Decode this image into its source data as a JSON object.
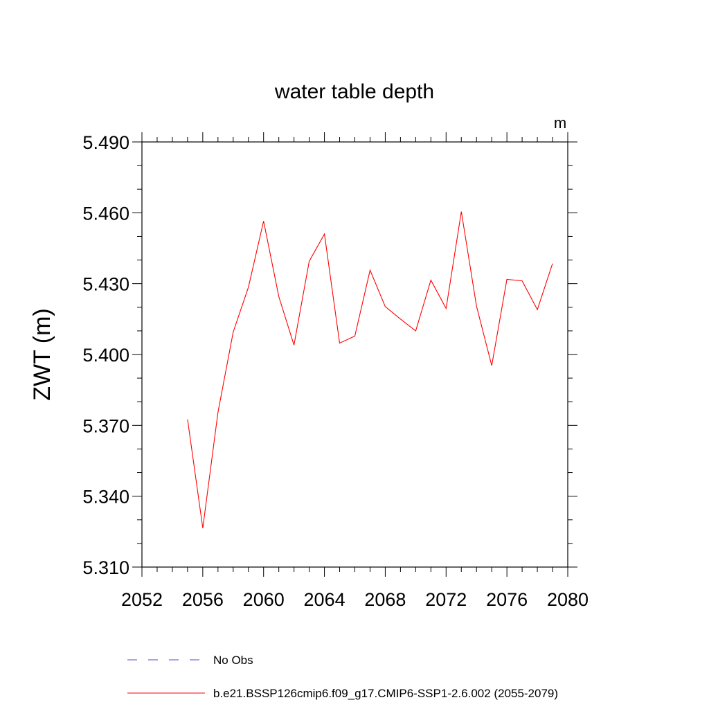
{
  "chart_data": {
    "type": "line",
    "title": "water table depth",
    "units_label": "m",
    "ylabel": "ZWT  (m)",
    "xlabel": "",
    "xlim": [
      2052,
      2080
    ],
    "ylim": [
      5.31,
      5.49
    ],
    "xticks": [
      2052,
      2056,
      2060,
      2064,
      2068,
      2072,
      2076,
      2080
    ],
    "yticks": [
      5.31,
      5.34,
      5.37,
      5.4,
      5.43,
      5.46,
      5.49
    ],
    "ytick_labels": [
      "5.310",
      "5.340",
      "5.370",
      "5.400",
      "5.430",
      "5.460",
      "5.490"
    ],
    "grid": false,
    "legend_position": "bottom",
    "series": [
      {
        "name": "b.e21.BSSP126cmip6.f09_g17.CMIP6-SSP1-2.6.002 (2055-2079)",
        "color": "#ff0000",
        "style": "solid",
        "x": [
          2055,
          2056,
          2057,
          2058,
          2059,
          2060,
          2061,
          2062,
          2063,
          2064,
          2065,
          2066,
          2067,
          2068,
          2069,
          2070,
          2071,
          2072,
          2073,
          2074,
          2075,
          2076,
          2077,
          2078,
          2079
        ],
        "y": [
          5.3725,
          5.3265,
          5.3755,
          5.4095,
          5.4285,
          5.4565,
          5.4245,
          5.404,
          5.4395,
          5.451,
          5.4048,
          5.4078,
          5.4357,
          5.4203,
          5.415,
          5.41,
          5.4315,
          5.4195,
          5.4605,
          5.4205,
          5.3953,
          5.4318,
          5.4312,
          5.419,
          5.4385
        ]
      }
    ],
    "legend": [
      {
        "label": "No Obs",
        "color": "#4b4bd0",
        "style": "dashed"
      },
      {
        "label": "b.e21.BSSP126cmip6.f09_g17.CMIP6-SSP1-2.6.002 (2055-2079)",
        "color": "#ff0000",
        "style": "solid"
      }
    ]
  }
}
